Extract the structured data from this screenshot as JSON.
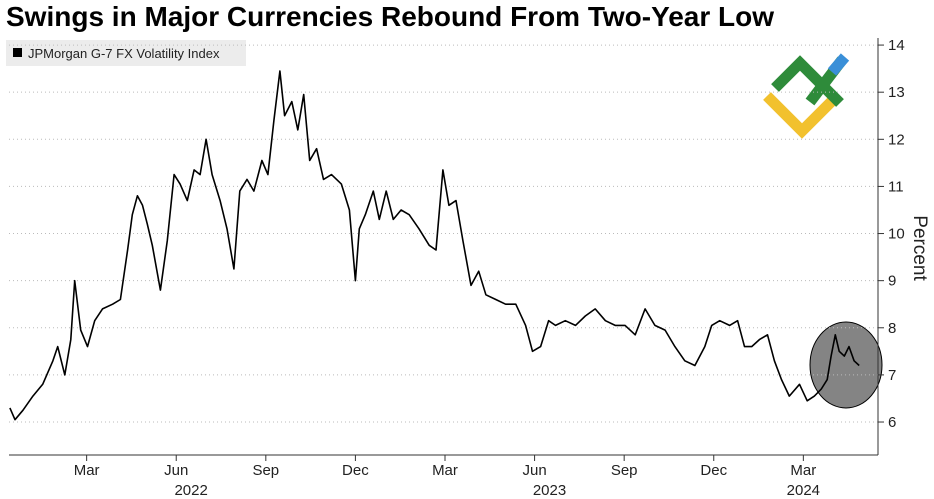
{
  "chart_data": {
    "type": "line",
    "title": "Swings in Major Currencies Rebound From Two-Year Low",
    "y_label": "Percent",
    "legend_position": "top-left",
    "grid": true,
    "xlim": [
      -0.6,
      28.5
    ],
    "ylim": [
      5.3,
      14.15
    ],
    "yticks": [
      6,
      7,
      8,
      9,
      10,
      11,
      12,
      13,
      14
    ],
    "xticks": [
      {
        "value": 2,
        "label": "Mar"
      },
      {
        "value": 5,
        "label": "Jun"
      },
      {
        "value": 8,
        "label": "Sep"
      },
      {
        "value": 11,
        "label": "Dec"
      },
      {
        "value": 14,
        "label": "Mar"
      },
      {
        "value": 17,
        "label": "Jun"
      },
      {
        "value": 20,
        "label": "Sep"
      },
      {
        "value": 23,
        "label": "Dec"
      },
      {
        "value": 26,
        "label": "Mar"
      }
    ],
    "year_labels": [
      {
        "value": 5.5,
        "label": "2022"
      },
      {
        "value": 17.5,
        "label": "2023"
      },
      {
        "value": 26,
        "label": "2024"
      }
    ],
    "x": [
      -0.57,
      -0.4,
      -0.13,
      0.2,
      0.53,
      0.87,
      1.03,
      1.27,
      1.47,
      1.6,
      1.8,
      2.03,
      2.27,
      2.53,
      2.87,
      3.13,
      3.37,
      3.53,
      3.7,
      3.87,
      4.03,
      4.2,
      4.47,
      4.7,
      4.93,
      5.13,
      5.37,
      5.6,
      5.8,
      6.0,
      6.2,
      6.47,
      6.7,
      6.93,
      7.13,
      7.37,
      7.6,
      7.87,
      8.07,
      8.27,
      8.47,
      8.63,
      8.87,
      9.07,
      9.27,
      9.47,
      9.7,
      9.93,
      10.2,
      10.53,
      10.8,
      11.0,
      11.13,
      11.33,
      11.6,
      11.8,
      12.03,
      12.27,
      12.53,
      12.8,
      13.13,
      13.47,
      13.7,
      13.93,
      14.13,
      14.37,
      14.6,
      14.87,
      15.13,
      15.37,
      15.7,
      16.03,
      16.37,
      16.7,
      16.93,
      17.2,
      17.47,
      17.7,
      18.03,
      18.37,
      18.7,
      19.03,
      19.37,
      19.7,
      20.03,
      20.37,
      20.7,
      21.03,
      21.37,
      21.7,
      22.03,
      22.37,
      22.7,
      22.93,
      23.2,
      23.53,
      23.8,
      24.03,
      24.27,
      24.53,
      24.8,
      25.03,
      25.27,
      25.53,
      25.87,
      26.13,
      26.37,
      26.6,
      26.8,
      26.93,
      27.07,
      27.2,
      27.37,
      27.53,
      27.7,
      27.87
    ],
    "series": [
      {
        "name": "JPMorgan G-7 FX Volatility Index",
        "color": "#000000",
        "values": [
          6.3,
          6.05,
          6.25,
          6.55,
          6.8,
          7.3,
          7.6,
          7.0,
          7.75,
          9.0,
          7.95,
          7.6,
          8.15,
          8.4,
          8.5,
          8.6,
          9.65,
          10.4,
          10.8,
          10.6,
          10.2,
          9.75,
          8.8,
          9.85,
          11.25,
          11.05,
          10.7,
          11.35,
          11.25,
          12.0,
          11.25,
          10.7,
          10.1,
          9.25,
          10.9,
          11.15,
          10.9,
          11.55,
          11.25,
          12.4,
          13.45,
          12.5,
          12.8,
          12.2,
          12.95,
          11.55,
          11.8,
          11.15,
          11.25,
          11.05,
          10.5,
          9.0,
          10.1,
          10.4,
          10.9,
          10.3,
          10.9,
          10.3,
          10.5,
          10.4,
          10.1,
          9.75,
          9.65,
          11.35,
          10.6,
          10.7,
          9.85,
          8.9,
          9.2,
          8.7,
          8.6,
          8.5,
          8.5,
          8.05,
          7.5,
          7.6,
          8.15,
          8.05,
          8.15,
          8.05,
          8.25,
          8.4,
          8.15,
          8.05,
          8.05,
          7.85,
          8.4,
          8.05,
          7.95,
          7.6,
          7.3,
          7.2,
          7.6,
          8.05,
          8.15,
          8.05,
          8.15,
          7.6,
          7.6,
          7.75,
          7.85,
          7.3,
          6.9,
          6.55,
          6.8,
          6.45,
          6.55,
          6.7,
          6.9,
          7.4,
          7.85,
          7.5,
          7.4,
          7.6,
          7.3,
          7.2
        ]
      }
    ]
  }
}
